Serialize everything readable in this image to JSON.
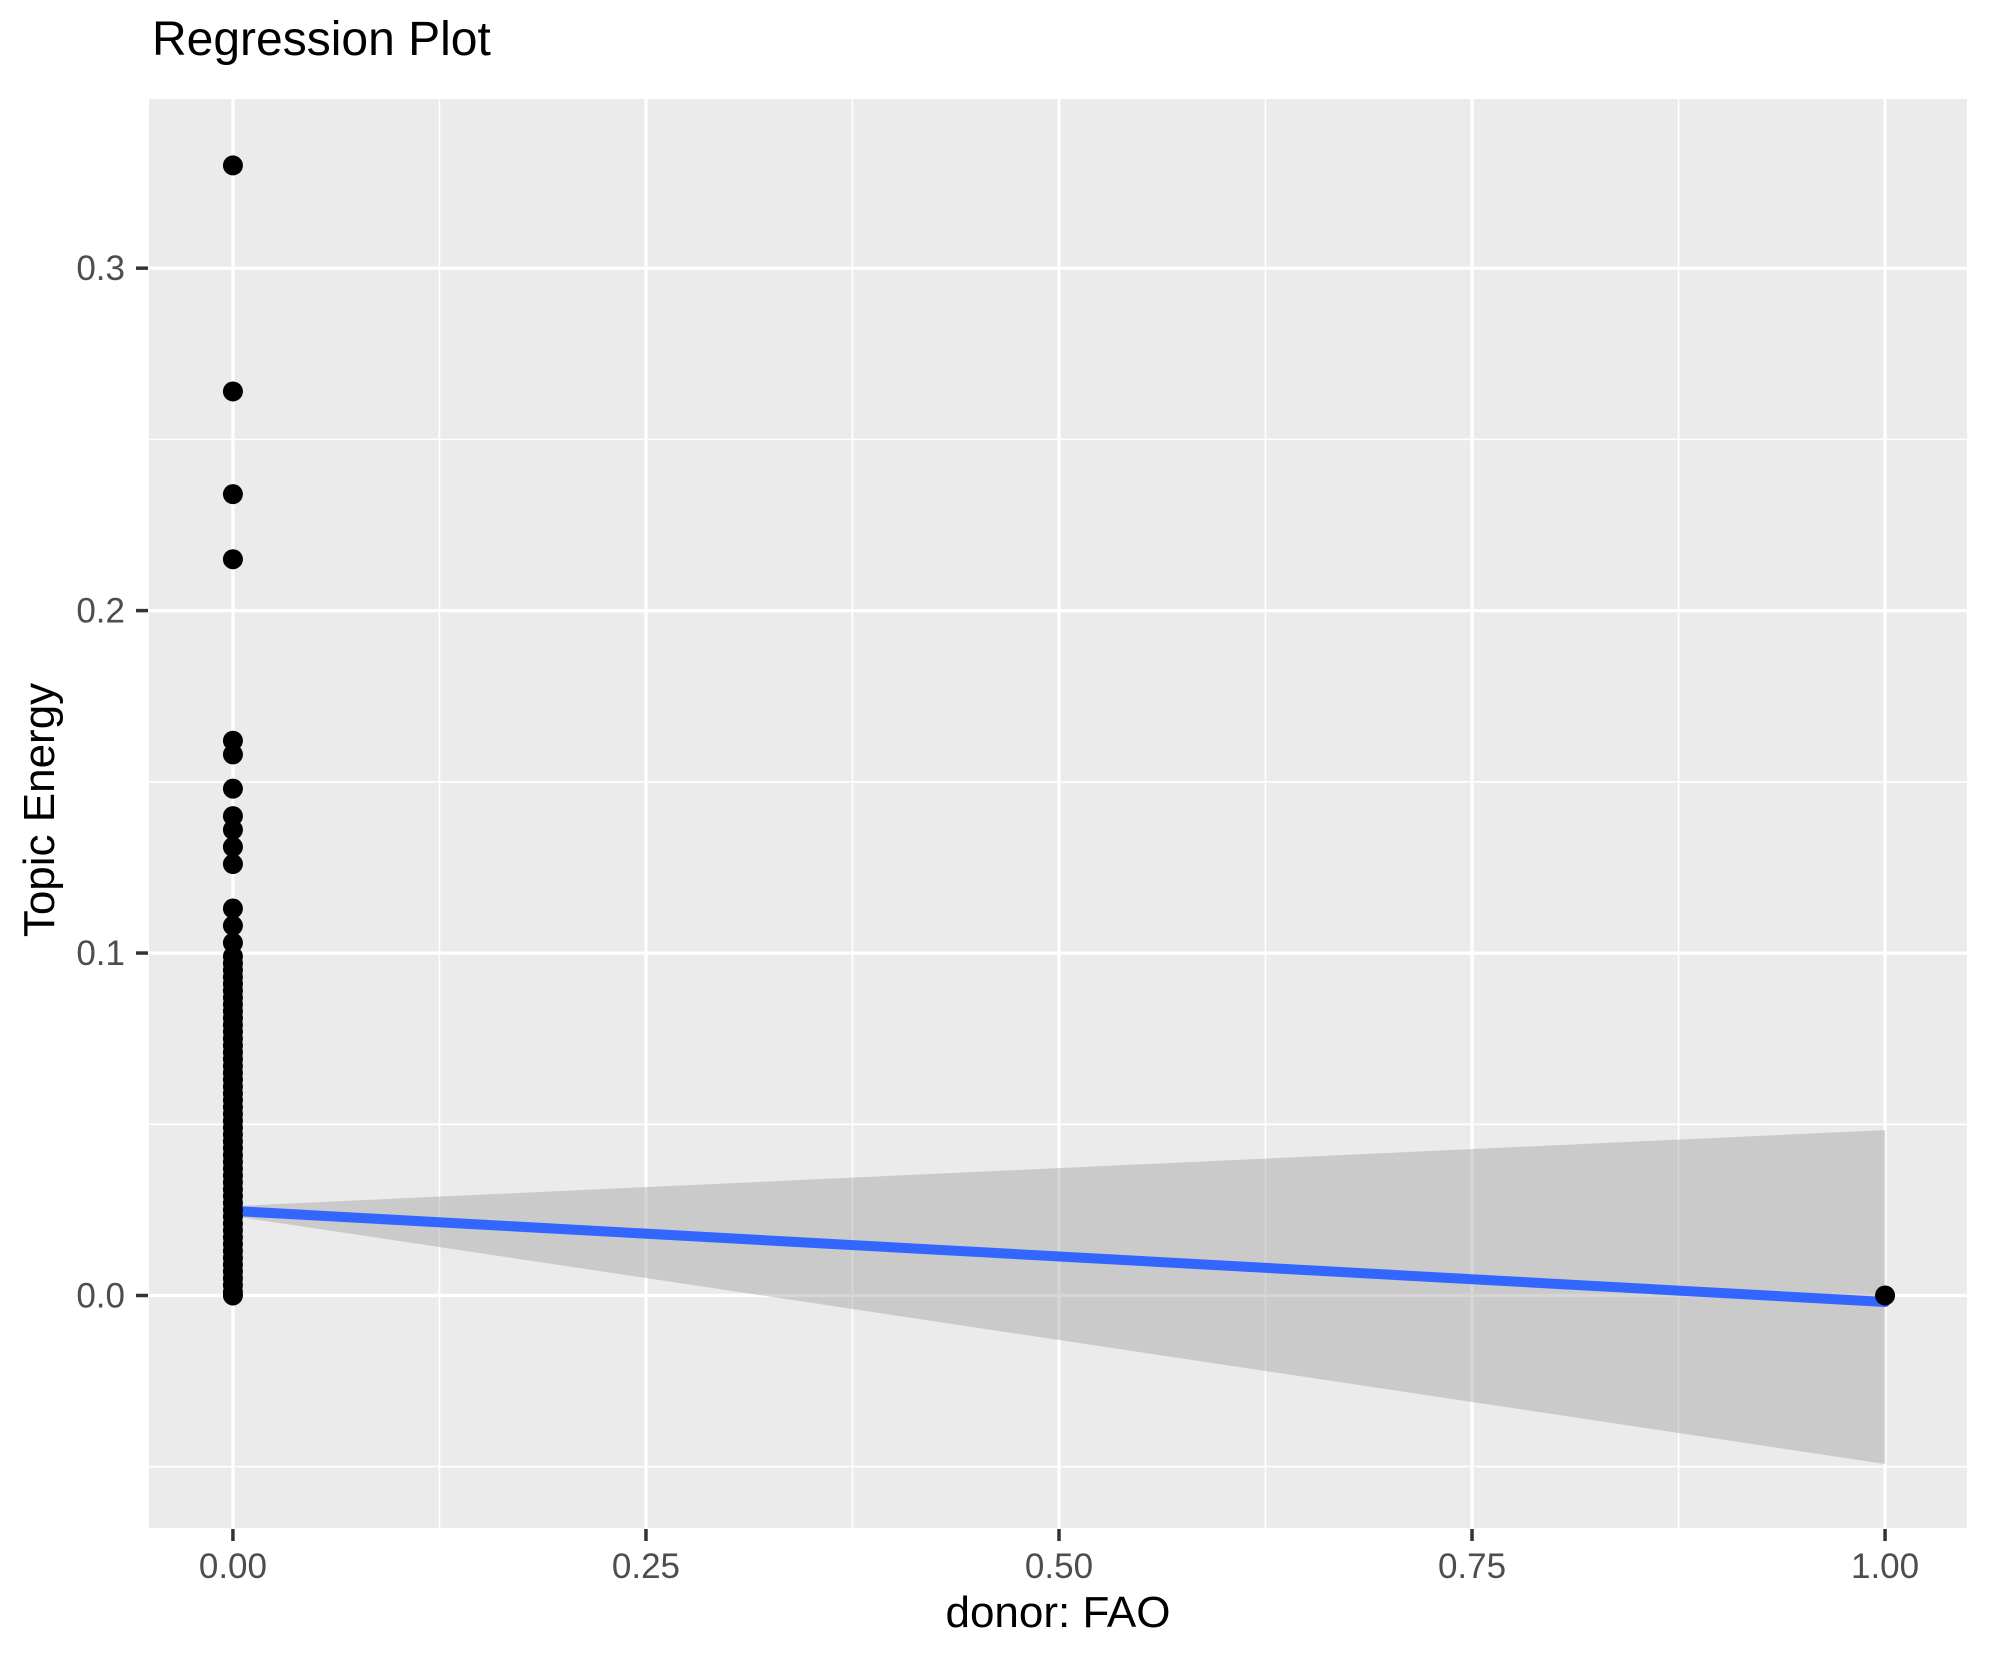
{
  "title": "Regression Plot",
  "x_axis_title": "donor: FAO",
  "y_axis_title": "Topic Energy",
  "colors": {
    "panel_background": "#EBEBEB",
    "gridline": "#FFFFFF",
    "point": "#000000",
    "regression_line": "#3366FF",
    "confidence_band": "rgba(153,153,153,0.4)",
    "tick_label": "#4D4D4D",
    "tick_mark": "#333333",
    "title_text": "#000000"
  },
  "chart_data": {
    "type": "scatter",
    "title": "Regression Plot",
    "xlabel": "donor: FAO",
    "ylabel": "Topic Energy",
    "xlim": [
      -0.0508,
      1.0496
    ],
    "ylim": [
      -0.0679,
      0.3494
    ],
    "grid": true,
    "legend": false,
    "x_tick_values": [
      0,
      0.25,
      0.5,
      0.75,
      1
    ],
    "x_tick_labels": [
      "0.00",
      "0.25",
      "0.50",
      "0.75",
      "1.00"
    ],
    "x_minor_ticks": [
      0.125,
      0.375,
      0.625,
      0.875
    ],
    "y_tick_values": [
      0,
      0.1,
      0.2,
      0.3
    ],
    "y_tick_labels": [
      "0.0",
      "0.1",
      "0.2",
      "0.3"
    ],
    "y_minor_ticks": [
      -0.05,
      0.05,
      0.15,
      0.25
    ],
    "series": [
      {
        "name": "confidence-band",
        "type": "area",
        "color": "rgba(153,153,153,0.4)",
        "points": [
          [
            0,
            0.0261
          ],
          [
            1,
            0.0483
          ],
          [
            1,
            -0.0492
          ],
          [
            0,
            0.0232
          ]
        ]
      },
      {
        "name": "fit-line",
        "type": "line",
        "color": "#3366FF",
        "width": 10,
        "points": [
          [
            0,
            0.0247
          ],
          [
            1,
            -0.0019
          ]
        ]
      },
      {
        "name": "observations",
        "type": "points",
        "color": "#000000",
        "radius": 10,
        "points": [
          [
            0,
            0.33
          ],
          [
            0,
            0.264
          ],
          [
            0,
            0.234
          ],
          [
            0,
            0.215
          ],
          [
            0,
            0.162
          ],
          [
            0,
            0.158
          ],
          [
            0,
            0.148
          ],
          [
            0,
            0.14
          ],
          [
            0,
            0.136
          ],
          [
            0,
            0.131
          ],
          [
            0,
            0.126
          ],
          [
            0,
            0.113
          ],
          [
            0,
            0.108
          ],
          [
            0,
            0.103
          ],
          [
            0,
            0.099
          ],
          [
            0,
            0.097
          ],
          [
            0,
            0.095
          ],
          [
            0,
            0.093
          ],
          [
            0,
            0.091
          ],
          [
            0,
            0.089
          ],
          [
            0,
            0.087
          ],
          [
            0,
            0.085
          ],
          [
            0,
            0.083
          ],
          [
            0,
            0.081
          ],
          [
            0,
            0.079
          ],
          [
            0,
            0.077
          ],
          [
            0,
            0.075
          ],
          [
            0,
            0.073
          ],
          [
            0,
            0.071
          ],
          [
            0,
            0.069
          ],
          [
            0,
            0.067
          ],
          [
            0,
            0.065
          ],
          [
            0,
            0.063
          ],
          [
            0,
            0.061
          ],
          [
            0,
            0.059
          ],
          [
            0,
            0.057
          ],
          [
            0,
            0.055
          ],
          [
            0,
            0.053
          ],
          [
            0,
            0.051
          ],
          [
            0,
            0.049
          ],
          [
            0,
            0.047
          ],
          [
            0,
            0.045
          ],
          [
            0,
            0.043
          ],
          [
            0,
            0.041
          ],
          [
            0,
            0.039
          ],
          [
            0,
            0.037
          ],
          [
            0,
            0.035
          ],
          [
            0,
            0.033
          ],
          [
            0,
            0.031
          ],
          [
            0,
            0.029
          ],
          [
            0,
            0.027
          ],
          [
            0,
            0.025
          ],
          [
            0,
            0.023
          ],
          [
            0,
            0.021
          ],
          [
            0,
            0.019
          ],
          [
            0,
            0.017
          ],
          [
            0,
            0.015
          ],
          [
            0,
            0.013
          ],
          [
            0,
            0.011
          ],
          [
            0,
            0.009
          ],
          [
            0,
            0.007
          ],
          [
            0,
            0.005
          ],
          [
            0,
            0.003
          ],
          [
            0,
            0.001
          ],
          [
            0,
            0.0
          ],
          [
            1,
            0.0
          ]
        ]
      }
    ]
  }
}
